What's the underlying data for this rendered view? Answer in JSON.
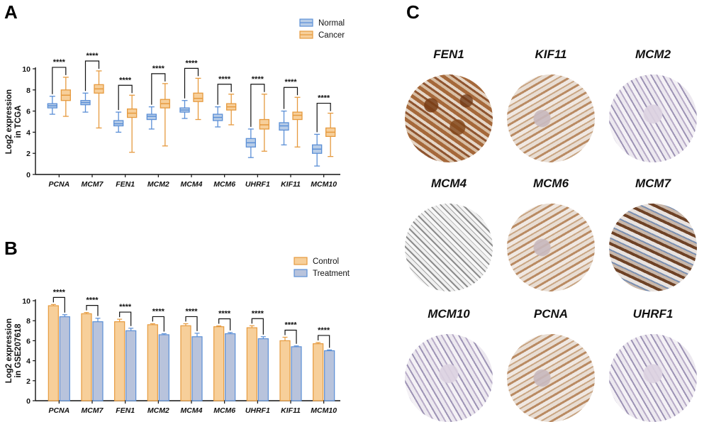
{
  "chart_data": [
    {
      "type": "box",
      "panel_label": "A",
      "ylabel": "Log2 expression\nin TCGA",
      "ylim": [
        0,
        10
      ],
      "yticks": [
        0,
        2,
        4,
        6,
        8,
        10
      ],
      "categories": [
        "PCNA",
        "MCM7",
        "FEN1",
        "MCM2",
        "MCM4",
        "MCM6",
        "UHRF1",
        "KIF11",
        "MCM10"
      ],
      "significance": "****",
      "legend_position": "top-right",
      "series": [
        {
          "name": "Normal",
          "color": "#5b8fd6",
          "fill": "#b8cde8",
          "boxes": [
            {
              "min": 5.7,
              "q1": 6.3,
              "median": 6.5,
              "q3": 6.7,
              "max": 7.4
            },
            {
              "min": 5.9,
              "q1": 6.6,
              "median": 6.8,
              "q3": 7.0,
              "max": 7.7
            },
            {
              "min": 4.0,
              "q1": 4.6,
              "median": 4.8,
              "q3": 5.1,
              "max": 5.9
            },
            {
              "min": 4.3,
              "q1": 5.2,
              "median": 5.5,
              "q3": 5.7,
              "max": 6.4
            },
            {
              "min": 5.3,
              "q1": 5.9,
              "median": 6.1,
              "q3": 6.3,
              "max": 7.0
            },
            {
              "min": 4.5,
              "q1": 5.1,
              "median": 5.4,
              "q3": 5.7,
              "max": 6.4
            },
            {
              "min": 1.6,
              "q1": 2.6,
              "median": 3.0,
              "q3": 3.4,
              "max": 4.3
            },
            {
              "min": 2.8,
              "q1": 4.2,
              "median": 4.6,
              "q3": 4.9,
              "max": 6.0
            },
            {
              "min": 0.8,
              "q1": 2.0,
              "median": 2.4,
              "q3": 2.8,
              "max": 3.8
            }
          ]
        },
        {
          "name": "Cancer",
          "color": "#e69a3e",
          "fill": "#f7cf9a",
          "boxes": [
            {
              "min": 5.5,
              "q1": 7.0,
              "median": 7.5,
              "q3": 8.0,
              "max": 9.2
            },
            {
              "min": 4.4,
              "q1": 7.7,
              "median": 8.1,
              "q3": 8.5,
              "max": 9.8
            },
            {
              "min": 2.1,
              "q1": 5.4,
              "median": 5.8,
              "q3": 6.2,
              "max": 7.5
            },
            {
              "min": 2.7,
              "q1": 6.3,
              "median": 6.7,
              "q3": 7.1,
              "max": 8.6
            },
            {
              "min": 5.2,
              "q1": 6.9,
              "median": 7.2,
              "q3": 7.7,
              "max": 9.1
            },
            {
              "min": 4.7,
              "q1": 6.1,
              "median": 6.4,
              "q3": 6.7,
              "max": 7.6
            },
            {
              "min": 2.2,
              "q1": 4.3,
              "median": 4.7,
              "q3": 5.2,
              "max": 7.6
            },
            {
              "min": 2.6,
              "q1": 5.2,
              "median": 5.6,
              "q3": 5.9,
              "max": 7.3
            },
            {
              "min": 1.7,
              "q1": 3.6,
              "median": 4.0,
              "q3": 4.4,
              "max": 5.8
            }
          ]
        }
      ]
    },
    {
      "type": "bar",
      "panel_label": "B",
      "ylabel": "Log2 expression\nin GSE207618",
      "ylim": [
        0,
        10
      ],
      "yticks": [
        0,
        2,
        4,
        6,
        8,
        10
      ],
      "categories": [
        "PCNA",
        "MCM7",
        "FEN1",
        "MCM2",
        "MCM4",
        "MCM6",
        "UHRF1",
        "KIF11",
        "MCM10"
      ],
      "significance": "****",
      "legend_position": "top-right",
      "series": [
        {
          "name": "Control",
          "color": "#e69a3e",
          "fill": "#f7cf9a",
          "values": [
            9.5,
            8.7,
            7.9,
            7.6,
            7.5,
            7.4,
            7.3,
            6.0,
            5.7
          ],
          "errors": [
            0.12,
            0.12,
            0.25,
            0.1,
            0.2,
            0.08,
            0.2,
            0.35,
            0.12
          ]
        },
        {
          "name": "Treatment",
          "color": "#5b8fd6",
          "fill": "#b8c3dc",
          "values": [
            8.4,
            7.9,
            7.0,
            6.6,
            6.4,
            6.7,
            6.2,
            5.4,
            5.0
          ],
          "errors": [
            0.2,
            0.35,
            0.25,
            0.1,
            0.35,
            0.12,
            0.2,
            0.08,
            0.08
          ]
        }
      ]
    }
  ],
  "panel_c": {
    "label": "C",
    "cores": [
      {
        "name": "FEN1",
        "stain": "strong"
      },
      {
        "name": "KIF11",
        "stain": "moderate"
      },
      {
        "name": "MCM2",
        "stain": "weak"
      },
      {
        "name": "MCM4",
        "stain": "gray"
      },
      {
        "name": "MCM6",
        "stain": "moderate"
      },
      {
        "name": "MCM7",
        "stain": "mixed"
      },
      {
        "name": "MCM10",
        "stain": "weak"
      },
      {
        "name": "PCNA",
        "stain": "moderate"
      },
      {
        "name": "UHRF1",
        "stain": "weak"
      }
    ]
  }
}
